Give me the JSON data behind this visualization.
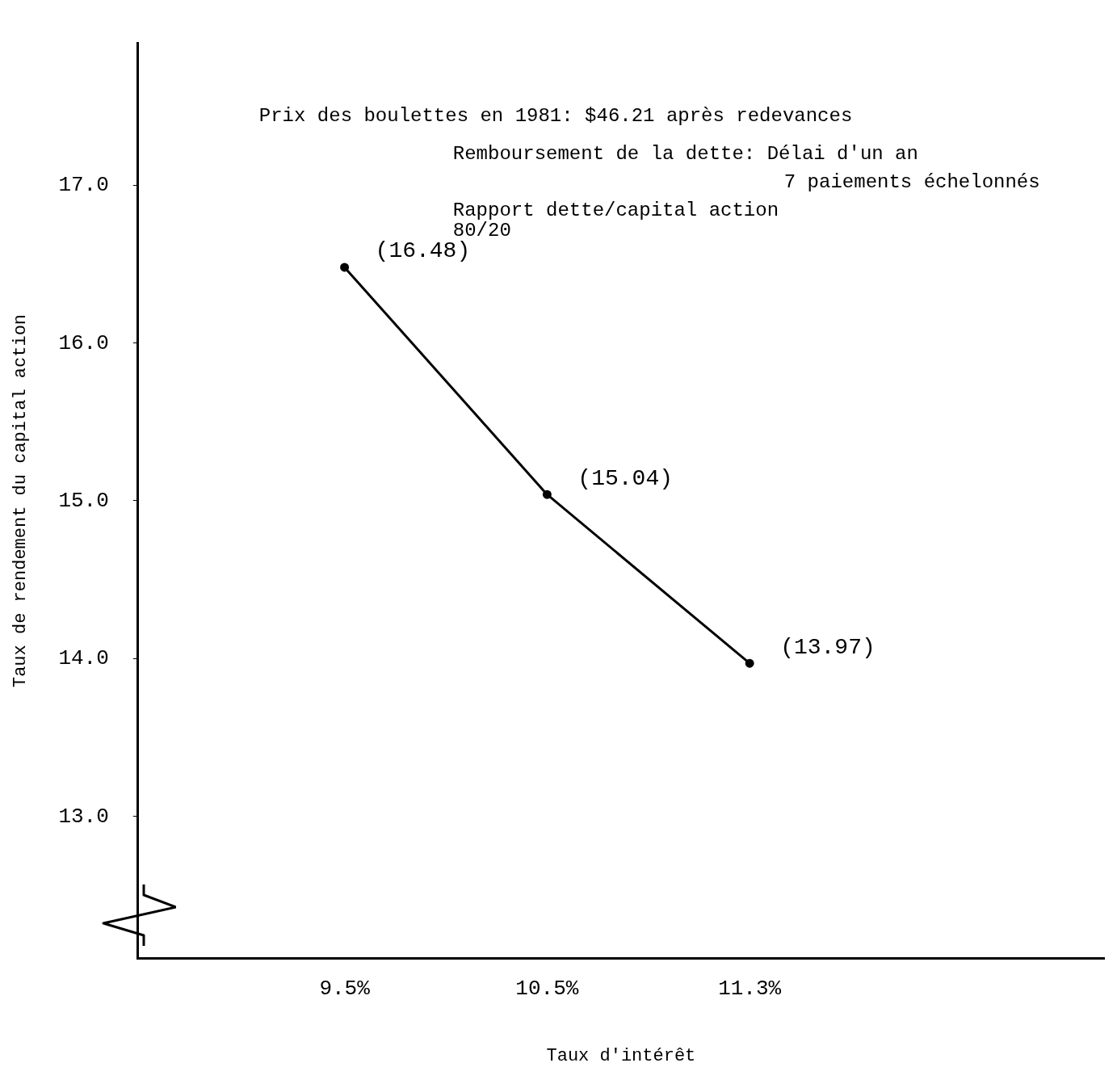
{
  "chart_data": {
    "type": "line",
    "xlabel": "Taux d'intérêt",
    "ylabel": "Taux de rendement du capital action",
    "categories": [
      "9.5%",
      "10.5%",
      "11.3%"
    ],
    "series": [
      {
        "color": "#000000",
        "values": [
          16.48,
          15.04,
          13.97
        ],
        "value_labels": [
          "(16.48)",
          "(15.04)",
          "(13.97)"
        ]
      }
    ],
    "ylim": [
      12.1,
      17.9
    ],
    "yticks": [
      {
        "value": 13,
        "label": "13.0"
      },
      {
        "value": 14,
        "label": "14.0"
      },
      {
        "value": 15,
        "label": "15.0"
      },
      {
        "value": 16,
        "label": "16.0"
      },
      {
        "value": 17,
        "label": "17.0"
      }
    ],
    "annotations": [
      "Prix des boulettes en 1981: $46.21 après redevances",
      "Remboursement de la dette: Délai d'un an",
      "7 paiements échelonnés",
      "Rapport dette/capital action",
      "80/20"
    ],
    "grid": false,
    "legend": false,
    "marker": "circle",
    "line_style": "solid"
  }
}
